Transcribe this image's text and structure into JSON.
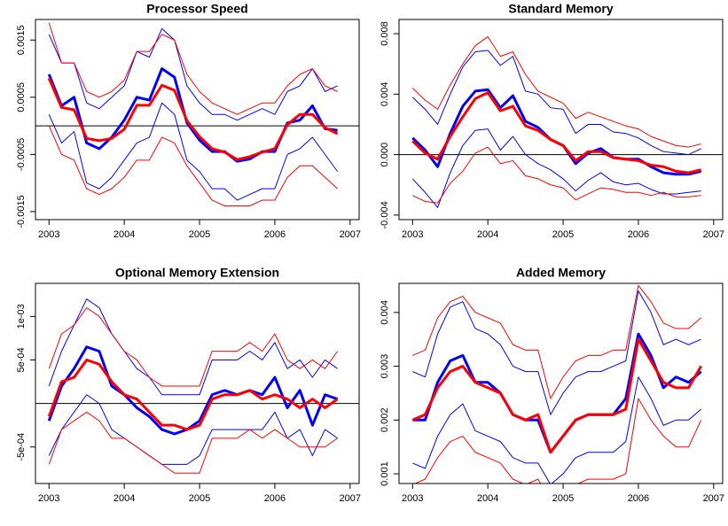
{
  "chart_data": [
    {
      "type": "line",
      "title": "Processor Speed",
      "x": [
        2003,
        2003.167,
        2003.333,
        2003.5,
        2003.667,
        2003.833,
        2004,
        2004.167,
        2004.333,
        2004.5,
        2004.667,
        2004.833,
        2005,
        2005.167,
        2005.333,
        2005.5,
        2005.667,
        2005.833,
        2006,
        2006.167,
        2006.333,
        2006.5,
        2006.667,
        2006.833
      ],
      "xlim": [
        2002.82,
        2007.12
      ],
      "xticks": [
        2003,
        2004,
        2005,
        2006,
        2007
      ],
      "ylim": [
        -0.00164,
        0.00186
      ],
      "yticks": [
        -0.0015,
        -0.0005,
        0.0005,
        0.0015
      ],
      "hline": 0,
      "series": [
        {
          "color": "#0000ff",
          "width": 1,
          "values": [
            0.0016,
            0.0011,
            0.0011,
            0.0004,
            0.0003,
            0.0005,
            0.0007,
            0.0013,
            0.0012,
            0.0017,
            0.0015,
            0.0007,
            0.0004,
            0.0002,
            0.0002,
            0.0001,
            0.0002,
            0.0003,
            0.0002,
            0.0006,
            0.0007,
            0.001,
            0.0006,
            0.0007
          ]
        },
        {
          "color": "#0000ff",
          "width": 1,
          "values": [
            0.0002,
            -0.0003,
            -0.0001,
            -0.001,
            -0.0011,
            -0.0009,
            -0.0006,
            -0.0003,
            -0.0002,
            0.0004,
            0.0002,
            -0.0006,
            -0.0008,
            -0.0011,
            -0.0011,
            -0.0013,
            -0.0012,
            -0.0011,
            -0.0011,
            -0.0005,
            -0.0004,
            -0.0002,
            -0.0005,
            -0.0008
          ]
        },
        {
          "color": "#ff0000",
          "width": 1,
          "values": [
            0.0018,
            0.0011,
            0.0011,
            0.0006,
            0.0005,
            0.0006,
            0.0008,
            0.0013,
            0.0013,
            0.0016,
            0.0015,
            0.0009,
            0.0006,
            0.0004,
            0.0003,
            0.0002,
            0.0003,
            0.0004,
            0.0004,
            0.0007,
            0.0009,
            0.001,
            0.0007,
            0.0006
          ]
        },
        {
          "color": "#ff0000",
          "width": 1,
          "values": [
            0,
            -0.0005,
            -0.0006,
            -0.0011,
            -0.0012,
            -0.0011,
            -0.0009,
            -0.0006,
            -0.0006,
            -0.0002,
            -0.0003,
            -0.0007,
            -0.001,
            -0.0013,
            -0.0014,
            -0.0014,
            -0.0014,
            -0.0013,
            -0.0013,
            -0.0009,
            -0.0007,
            -0.0007,
            -0.0009,
            -0.0011
          ]
        },
        {
          "color": "#0000ff",
          "width": 3,
          "values": [
            0.0009,
            0.00035,
            0.0005,
            -0.0003,
            -0.0004,
            -0.0002,
            0.0001,
            0.0005,
            0.00045,
            0.001,
            0.00085,
            5e-05,
            -0.00025,
            -0.00045,
            -0.00045,
            -0.00062,
            -0.00058,
            -0.00045,
            -0.00045,
            5e-05,
            0.0001,
            0.00035,
            -5e-05,
            -8e-05
          ]
        },
        {
          "color": "#ff0000",
          "width": 3,
          "values": [
            0.00083,
            0.00032,
            0.00028,
            -0.00022,
            -0.00026,
            -0.00022,
            -6e-05,
            0.00036,
            0.00036,
            0.00071,
            0.00062,
            9e-05,
            -0.00019,
            -0.0004,
            -0.00046,
            -0.00059,
            -0.00054,
            -0.00046,
            -0.0004,
            2e-05,
            0.0002,
            0.0002,
            -3e-05,
            -0.00014
          ]
        }
      ]
    },
    {
      "type": "line",
      "title": "Standard Memory",
      "x": [
        2003,
        2003.167,
        2003.333,
        2003.5,
        2003.667,
        2003.833,
        2004,
        2004.167,
        2004.333,
        2004.5,
        2004.667,
        2004.833,
        2005,
        2005.167,
        2005.333,
        2005.5,
        2005.667,
        2005.833,
        2006,
        2006.167,
        2006.333,
        2006.5,
        2006.667,
        2006.833
      ],
      "xlim": [
        2002.82,
        2007.12
      ],
      "xticks": [
        2003,
        2004,
        2005,
        2006,
        2007
      ],
      "ylim": [
        -0.0043,
        0.00894
      ],
      "yticks": [
        -0.004,
        {
          "value": 0,
          "label": "0.000"
        },
        0.004,
        0.008
      ],
      "hline": 0,
      "series": [
        {
          "color": "#0000ff",
          "width": 1,
          "values": [
            0.0038,
            0.003,
            0.002,
            0.004,
            0.0058,
            0.0068,
            0.0069,
            0.0059,
            0.0065,
            0.0042,
            0.004,
            0.0031,
            0.003,
            0.0014,
            0.002,
            0.002,
            0.0015,
            0.0014,
            0.0011,
            0.0006,
            0.0002,
            0.0001,
            0,
            0.0004
          ]
        },
        {
          "color": "#0000ff",
          "width": 1,
          "values": [
            -0.0016,
            -0.0025,
            -0.0035,
            -0.0012,
            0.0006,
            0.0016,
            0.0017,
            0.0003,
            0.0012,
            0,
            -0.0006,
            -0.001,
            -0.0016,
            -0.0024,
            -0.0017,
            -0.0012,
            -0.0018,
            -0.002,
            -0.0019,
            -0.0023,
            -0.0026,
            -0.0026,
            -0.0025,
            -0.0024
          ]
        },
        {
          "color": "#ff0000",
          "width": 1,
          "values": [
            0.0044,
            0.0036,
            0.003,
            0.0046,
            0.006,
            0.0072,
            0.0078,
            0.0065,
            0.0068,
            0.0053,
            0.0042,
            0.0038,
            0.0034,
            0.0024,
            0.0028,
            0.0025,
            0.0022,
            0.0019,
            0.0017,
            0.0012,
            0.0009,
            0.0006,
            0.0005,
            0.0007
          ]
        },
        {
          "color": "#ff0000",
          "width": 1,
          "values": [
            -0.0027,
            -0.0031,
            -0.0032,
            -0.0019,
            -0.0011,
            0.0001,
            0.0005,
            -0.0006,
            -0.0004,
            -0.0014,
            -0.0016,
            -0.002,
            -0.0022,
            -0.003,
            -0.0026,
            -0.0022,
            -0.0023,
            -0.0025,
            -0.0025,
            -0.0027,
            -0.0025,
            -0.0028,
            -0.0028,
            -0.0027
          ]
        },
        {
          "color": "#0000ff",
          "width": 3,
          "values": [
            0.0011,
            0.0003,
            -0.0008,
            0.0014,
            0.0032,
            0.0042,
            0.0043,
            0.0031,
            0.0039,
            0.0022,
            0.0018,
            0.001,
            0.0006,
            -0.0006,
            0.0001,
            0.0004,
            -0.0002,
            -0.0003,
            -0.0003,
            -0.0008,
            -0.0012,
            -0.0013,
            -0.0013,
            -0.0011
          ]
        },
        {
          "color": "#ff0000",
          "width": 3,
          "values": [
            0.0009,
            0.0001,
            -0.0003,
            0.0012,
            0.0025,
            0.0037,
            0.0041,
            0.0029,
            0.0032,
            0.0019,
            0.0016,
            0.001,
            0.0006,
            -0.0004,
            0.0002,
            0.0002,
            -0.0002,
            -0.0003,
            -0.0004,
            -0.0007,
            -0.0008,
            -0.0011,
            -0.0012,
            -0.001
          ]
        }
      ]
    },
    {
      "type": "line",
      "title": "Optional Memory Extension",
      "x": [
        2003,
        2003.167,
        2003.333,
        2003.5,
        2003.667,
        2003.833,
        2004,
        2004.167,
        2004.333,
        2004.5,
        2004.667,
        2004.833,
        2005,
        2005.167,
        2005.333,
        2005.5,
        2005.667,
        2005.833,
        2006,
        2006.167,
        2006.333,
        2006.5,
        2006.667,
        2006.833
      ],
      "xlim": [
        2002.82,
        2007.12
      ],
      "xticks": [
        2003,
        2004,
        2005,
        2006,
        2007
      ],
      "ylim": [
        -0.00092,
        0.00138
      ],
      "yticks": [
        {
          "value": -0.0005,
          "label": "-5e-04"
        },
        {
          "value": 0.0005,
          "label": "5e-04"
        },
        {
          "value": 0.001,
          "label": "1e-03"
        }
      ],
      "hline": 0,
      "series": [
        {
          "color": "#0000ff",
          "width": 1,
          "values": [
            0.0002,
            0.0006,
            0.0009,
            0.0012,
            0.0011,
            0.0008,
            0.0006,
            0.0004,
            0.0003,
            0.0001,
            0.0001,
            0.0001,
            0.0001,
            0.0005,
            0.0005,
            0.0005,
            0.0006,
            0.0005,
            0.0007,
            0.0004,
            0.0005,
            0.0003,
            0.0005,
            0.0004
          ]
        },
        {
          "color": "#0000ff",
          "width": 1,
          "values": [
            -0.0006,
            -0.0003,
            -0.0001,
            0.0001,
            0,
            -0.0003,
            -0.0004,
            -0.0005,
            -0.0006,
            -0.0007,
            -0.0007,
            -0.0007,
            -0.0006,
            -0.0003,
            -0.0003,
            -0.0003,
            -0.0003,
            -0.0003,
            -0.0001,
            -0.0004,
            -0.0003,
            -0.0006,
            -0.0003,
            -0.0004
          ]
        },
        {
          "color": "#ff0000",
          "width": 1,
          "values": [
            0.0004,
            0.0008,
            0.0009,
            0.0011,
            0.001,
            0.0008,
            0.0006,
            0.0005,
            0.0003,
            0.0002,
            0.0002,
            0.0002,
            0.0002,
            0.0006,
            0.0006,
            0.0006,
            0.0007,
            0.0006,
            0.0008,
            0.0005,
            0.0004,
            0.0005,
            0.0004,
            0.0006
          ]
        },
        {
          "color": "#ff0000",
          "width": 1,
          "values": [
            -0.0007,
            -0.0003,
            -0.0002,
            -0.0001,
            -0.0002,
            -0.0004,
            -0.0004,
            -0.0005,
            -0.0006,
            -0.0007,
            -0.0008,
            -0.0008,
            -0.0008,
            -0.0004,
            -0.0004,
            -0.0004,
            -0.0003,
            -0.0004,
            -0.0003,
            -0.0004,
            -0.0005,
            -0.0005,
            -0.0005,
            -0.0004
          ]
        },
        {
          "color": "#0000ff",
          "width": 3,
          "values": [
            -0.0002,
            0.0002,
            0.0004,
            0.00065,
            0.0006,
            0.0002,
            0.0001,
            -5e-05,
            -0.00015,
            -0.0003,
            -0.00035,
            -0.0003,
            -0.0002,
            0.0001,
            0.00015,
            0.0001,
            0.00015,
            0.0001,
            0.0003,
            -5e-05,
            0.00015,
            -0.00025,
            0.0001,
            5e-05
          ]
        },
        {
          "color": "#ff0000",
          "width": 3,
          "values": [
            -0.00015,
            0.00025,
            0.0003,
            0.0005,
            0.00045,
            0.00025,
            0.0001,
            5e-05,
            -0.0001,
            -0.00025,
            -0.00025,
            -0.0003,
            -0.00025,
            5e-05,
            0.0001,
            0.0001,
            0.00015,
            5e-05,
            0.0001,
            5e-05,
            -5e-05,
            5e-05,
            -5e-05,
            5e-05
          ]
        }
      ]
    },
    {
      "type": "line",
      "title": "Added Memory",
      "x": [
        2003,
        2003.167,
        2003.333,
        2003.5,
        2003.667,
        2003.833,
        2004,
        2004.167,
        2004.333,
        2004.5,
        2004.667,
        2004.833,
        2005,
        2005.167,
        2005.333,
        2005.5,
        2005.667,
        2005.833,
        2006,
        2006.167,
        2006.333,
        2006.5,
        2006.667,
        2006.833
      ],
      "xlim": [
        2002.82,
        2007.12
      ],
      "xticks": [
        2003,
        2004,
        2005,
        2006,
        2007
      ],
      "ylim": [
        0.00082,
        0.00454
      ],
      "yticks": [
        0.001,
        0.002,
        0.003,
        0.004
      ],
      "series": [
        {
          "color": "#0000ff",
          "width": 1,
          "values": [
            0.0029,
            0.0028,
            0.0036,
            0.0041,
            0.0042,
            0.0037,
            0.0036,
            0.0034,
            0.003,
            0.0029,
            0.0029,
            0.0021,
            0.0025,
            0.0028,
            0.0029,
            0.0029,
            0.003,
            0.0031,
            0.0044,
            0.004,
            0.0034,
            0.0035,
            0.0034,
            0.0035
          ]
        },
        {
          "color": "#0000ff",
          "width": 1,
          "values": [
            0.0012,
            0.0011,
            0.0017,
            0.0021,
            0.0023,
            0.0018,
            0.0017,
            0.0016,
            0.0013,
            0.0012,
            0.0012,
            0.0008,
            0.001,
            0.0013,
            0.0014,
            0.0014,
            0.0014,
            0.0016,
            0.0028,
            0.0024,
            0.0019,
            0.002,
            0.002,
            0.0022
          ]
        },
        {
          "color": "#ff0000",
          "width": 1,
          "values": [
            0.0032,
            0.0033,
            0.0039,
            0.0042,
            0.0043,
            0.004,
            0.0039,
            0.0038,
            0.0034,
            0.0033,
            0.0033,
            0.0024,
            0.0028,
            0.0031,
            0.0032,
            0.0032,
            0.0033,
            0.0033,
            0.0045,
            0.0042,
            0.0038,
            0.0037,
            0.0037,
            0.0039
          ]
        },
        {
          "color": "#ff0000",
          "width": 1,
          "values": [
            0.0008,
            0.0009,
            0.0013,
            0.0016,
            0.0017,
            0.0014,
            0.0013,
            0.0012,
            0.0009,
            0.0008,
            0.0009,
            0.0005,
            0.0007,
            0.0008,
            0.0009,
            0.0009,
            0.0009,
            0.001,
            0.0024,
            0.002,
            0.0017,
            0.0015,
            0.0015,
            0.002
          ]
        },
        {
          "color": "#0000ff",
          "width": 3,
          "values": [
            0.002,
            0.002,
            0.0027,
            0.0031,
            0.0032,
            0.0027,
            0.0027,
            0.0025,
            0.0021,
            0.002,
            0.002,
            0.0014,
            0.0017,
            0.002,
            0.0021,
            0.0021,
            0.0021,
            0.0024,
            0.0036,
            0.0032,
            0.0026,
            0.0028,
            0.0027,
            0.0029
          ]
        },
        {
          "color": "#ff0000",
          "width": 3,
          "values": [
            0.002,
            0.0021,
            0.0026,
            0.0029,
            0.003,
            0.0027,
            0.0026,
            0.0025,
            0.0021,
            0.002,
            0.0021,
            0.0014,
            0.0017,
            0.002,
            0.0021,
            0.0021,
            0.0021,
            0.0022,
            0.0035,
            0.0031,
            0.0027,
            0.0026,
            0.0026,
            0.003
          ]
        }
      ]
    }
  ]
}
